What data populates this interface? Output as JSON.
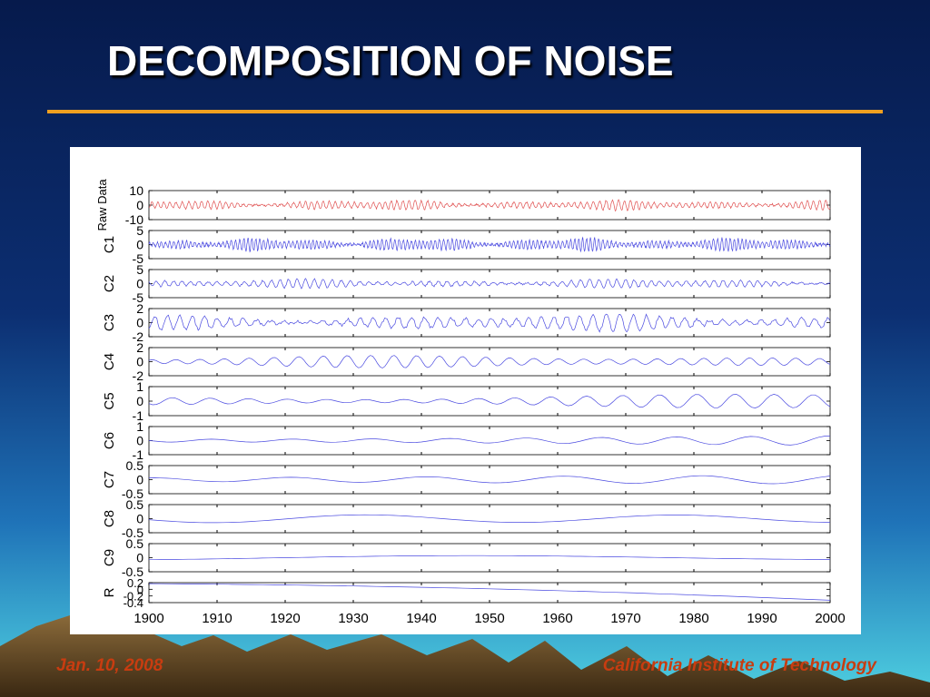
{
  "slide": {
    "title": "DECOMPOSITION OF NOISE",
    "footer_left": "Jan. 10, 2008",
    "footer_right": "California Institute of Technology"
  },
  "colors": {
    "title_rule": "#f0a020",
    "footer_text": "#c83c10",
    "raw_series": "#e05050",
    "imf_series": "#4a4ae0"
  },
  "chart_data": {
    "type": "line",
    "layout": "stacked-panels",
    "x_range": [
      1900,
      2000
    ],
    "x_ticks": [
      1900,
      1910,
      1920,
      1930,
      1940,
      1950,
      1960,
      1970,
      1980,
      1990,
      2000
    ],
    "grid": false,
    "series": [
      {
        "name": "Raw Data",
        "ylim": [
          -10,
          10
        ],
        "yticks": [
          "10",
          "0",
          "-10"
        ],
        "approx_amplitude": 3.5,
        "approx_period_years": 0.9,
        "color": "#e05050"
      },
      {
        "name": "C1",
        "ylim": [
          -5,
          5
        ],
        "yticks": [
          "5",
          "0",
          "-5"
        ],
        "approx_amplitude": 2.3,
        "approx_period_years": 0.6,
        "color": "#4a4ae0"
      },
      {
        "name": "C2",
        "ylim": [
          -5,
          5
        ],
        "yticks": [
          "5",
          "0",
          "-5"
        ],
        "approx_amplitude": 1.6,
        "approx_period_years": 1.3,
        "color": "#4a4ae0"
      },
      {
        "name": "C3",
        "ylim": [
          -2,
          2
        ],
        "yticks": [
          "2",
          "0",
          "-2"
        ],
        "approx_amplitude": 1.2,
        "approx_period_years": 1.9,
        "color": "#4a4ae0"
      },
      {
        "name": "C4",
        "ylim": [
          -2,
          2
        ],
        "yticks": [
          "2",
          "0",
          "-2"
        ],
        "approx_amplitude": 0.9,
        "approx_period_years": 3.5,
        "color": "#4a4ae0"
      },
      {
        "name": "C5",
        "ylim": [
          -1,
          1
        ],
        "yticks": [
          "1",
          "0",
          "-1"
        ],
        "approx_amplitude": 0.5,
        "approx_period_years": 5.5,
        "color": "#4a4ae0"
      },
      {
        "name": "C6",
        "ylim": [
          -1,
          1
        ],
        "yticks": [
          "1",
          "0",
          "-1"
        ],
        "approx_amplitude": 0.35,
        "approx_period_years": 11.5,
        "color": "#4a4ae0"
      },
      {
        "name": "C7",
        "ylim": [
          -0.5,
          0.5
        ],
        "yticks": [
          "0.5",
          "0",
          "-0.5"
        ],
        "approx_amplitude": 0.18,
        "approx_period_years": 21,
        "color": "#4a4ae0"
      },
      {
        "name": "C8",
        "ylim": [
          -0.5,
          0.5
        ],
        "yticks": [
          "0.5",
          "0",
          "-0.5"
        ],
        "approx_amplitude": 0.3,
        "approx_period_years": 45,
        "color": "#4a4ae0"
      },
      {
        "name": "C9",
        "ylim": [
          -0.5,
          0.5
        ],
        "yticks": [
          "0.5",
          "0",
          "-0.5"
        ],
        "approx_amplitude": 0.12,
        "approx_period_years": 110,
        "color": "#4a4ae0"
      },
      {
        "name": "R",
        "ylim": [
          -0.4,
          0.2
        ],
        "yticks": [
          "0.2",
          "0",
          "-0.2",
          "-0.4"
        ],
        "trend": {
          "start_value": 0.17,
          "end_value": -0.33
        },
        "color": "#4a4ae0"
      }
    ]
  }
}
